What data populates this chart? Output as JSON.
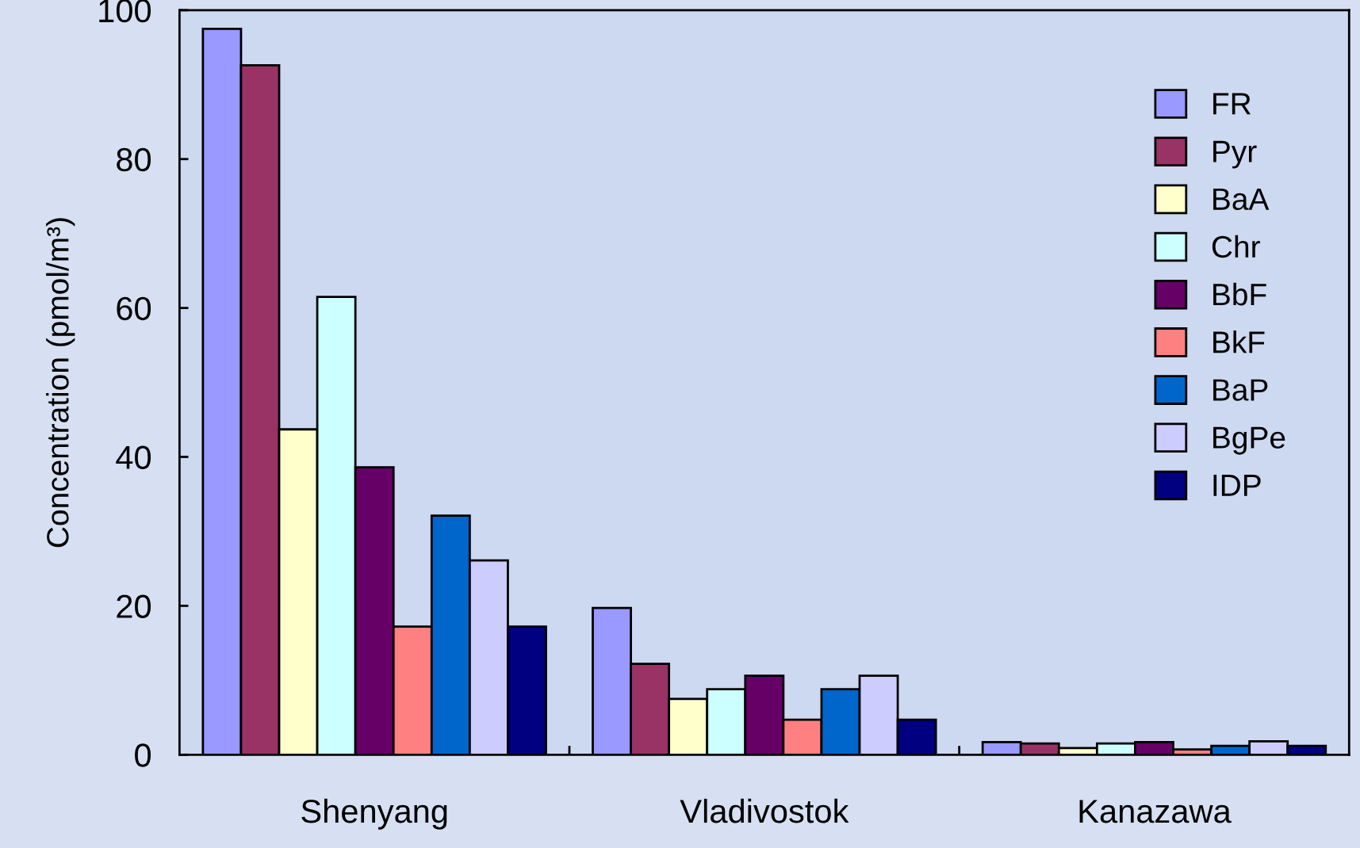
{
  "chart_data": {
    "type": "bar",
    "ylabel": "Concentration (pmol/m³)",
    "categories": [
      "Shenyang",
      "Vladivostok",
      "Kanazawa"
    ],
    "series": [
      {
        "name": "FR",
        "color": "#9999ff",
        "values": [
          97.5,
          19.7,
          1.7
        ]
      },
      {
        "name": "Pyr",
        "color": "#993366",
        "values": [
          92.6,
          12.2,
          1.5
        ]
      },
      {
        "name": "BaA",
        "color": "#ffffcc",
        "values": [
          43.7,
          7.5,
          0.9
        ]
      },
      {
        "name": "Chr",
        "color": "#ccffff",
        "values": [
          61.5,
          8.8,
          1.5
        ]
      },
      {
        "name": "BbF",
        "color": "#660066",
        "values": [
          38.6,
          10.6,
          1.7
        ]
      },
      {
        "name": "BkF",
        "color": "#ff8080",
        "values": [
          17.2,
          4.7,
          0.7
        ]
      },
      {
        "name": "BaP",
        "color": "#0066cc",
        "values": [
          32.1,
          8.8,
          1.2
        ]
      },
      {
        "name": "BgPe",
        "color": "#ccccff",
        "values": [
          26.1,
          10.6,
          1.8
        ]
      },
      {
        "name": "IDP",
        "color": "#000080",
        "values": [
          17.2,
          4.7,
          1.2
        ]
      }
    ],
    "ylim": [
      0,
      100
    ],
    "yticks": [
      0,
      20,
      40,
      60,
      80,
      100
    ],
    "grid": false,
    "legend": "top right"
  }
}
